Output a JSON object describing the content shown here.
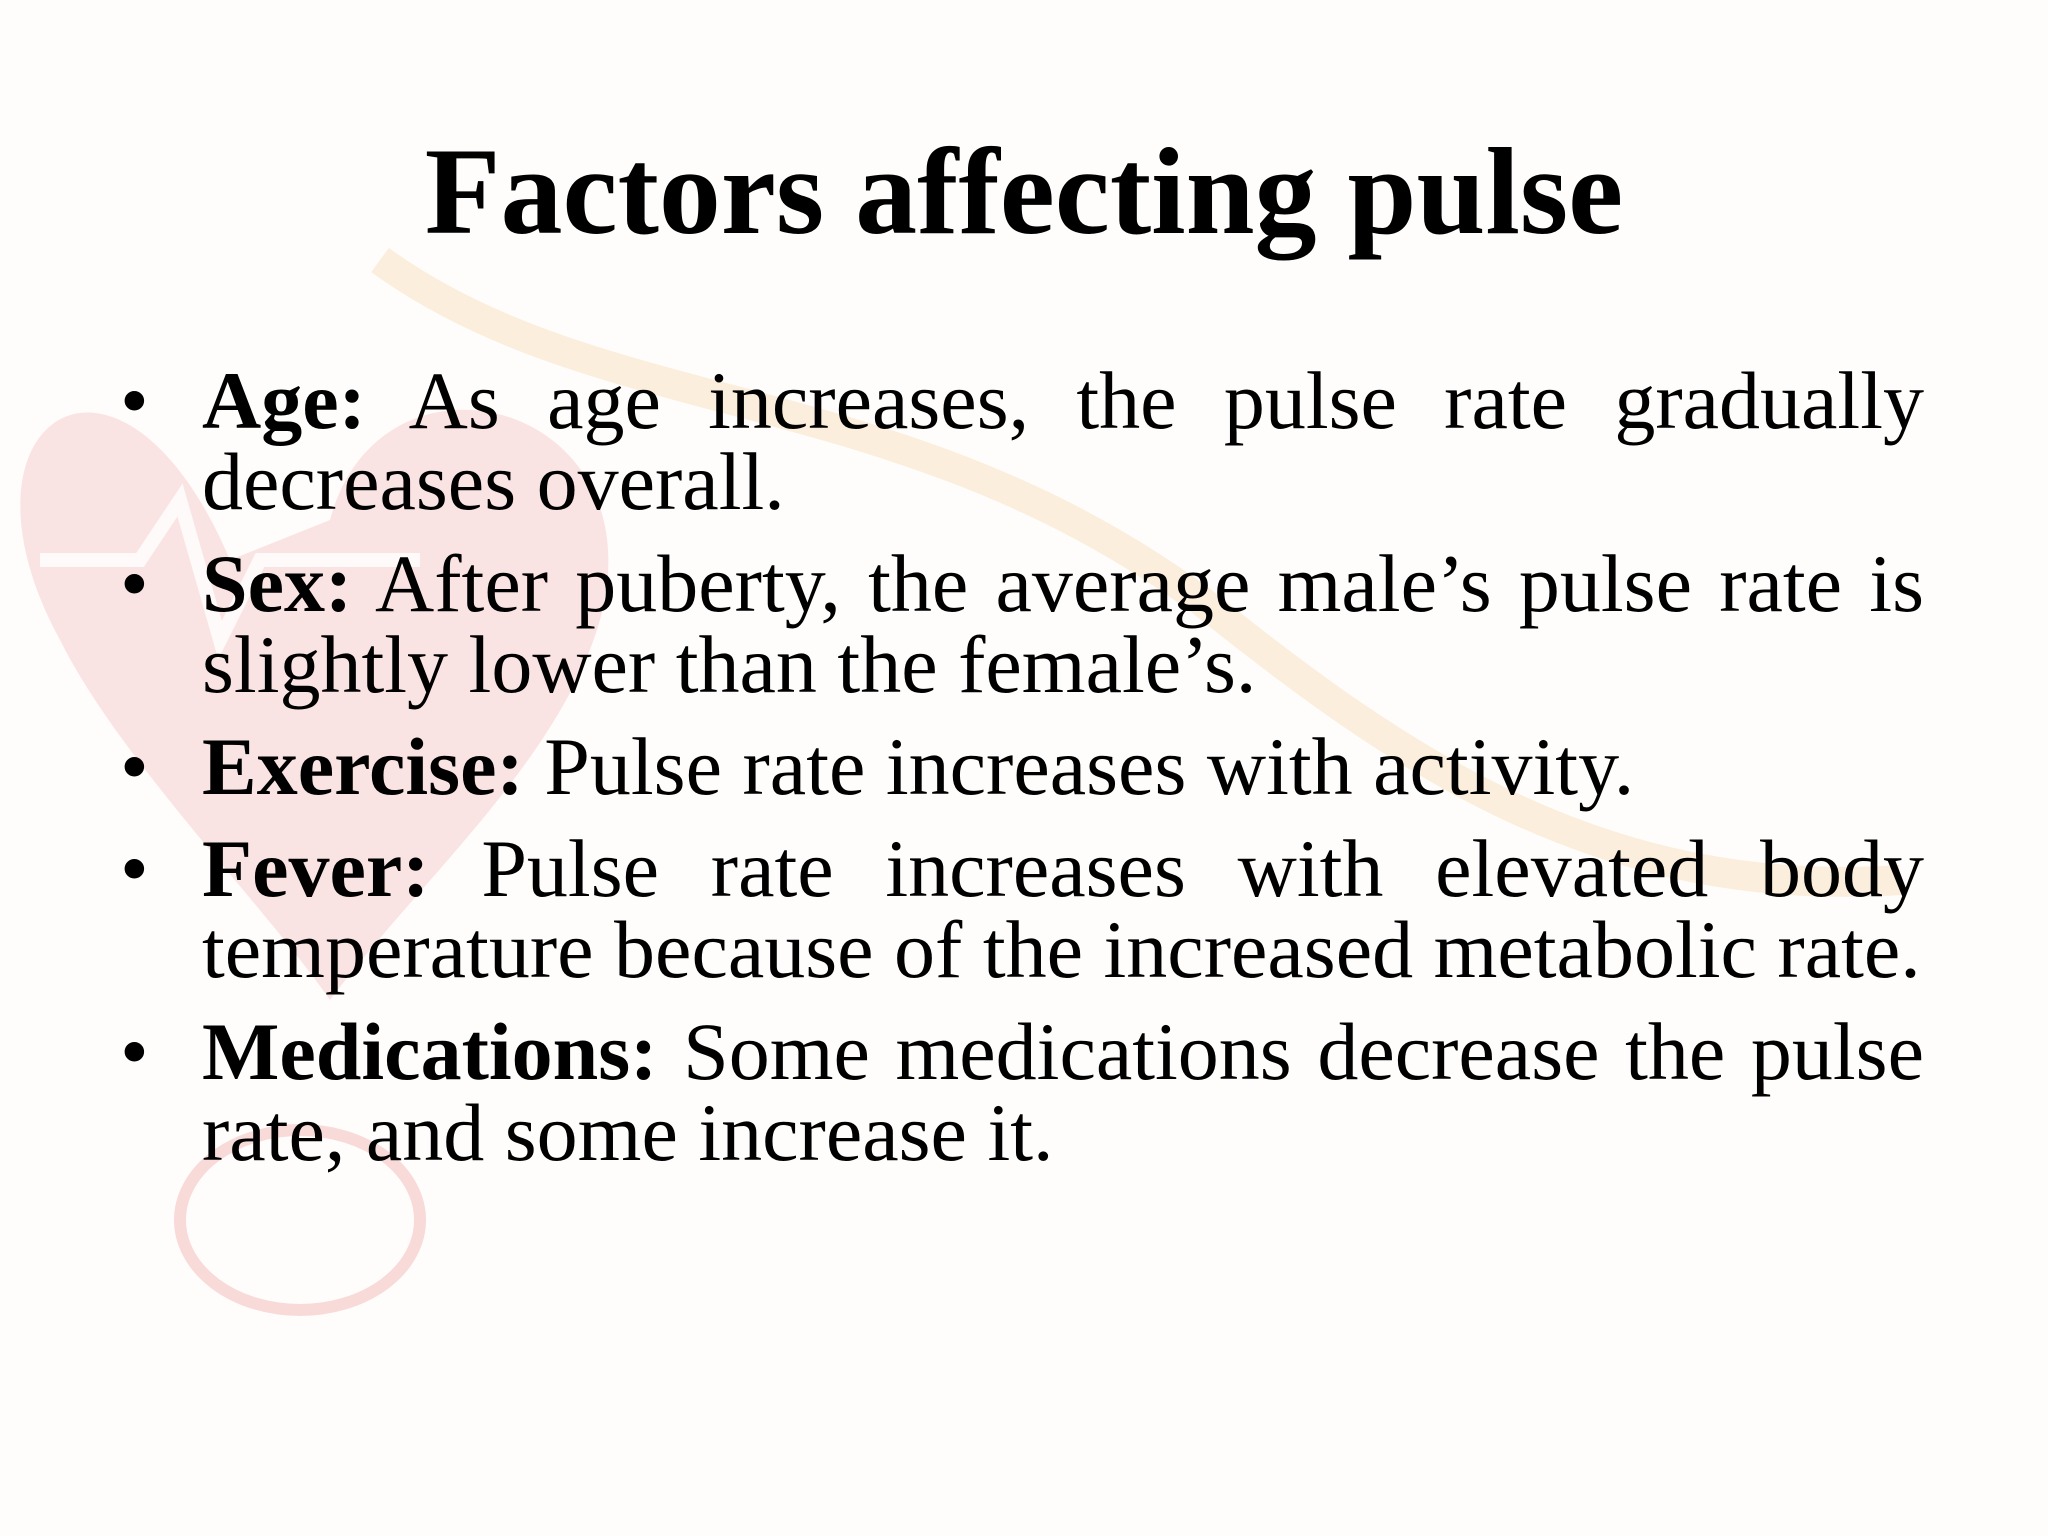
{
  "title": "Factors affecting pulse",
  "items": [
    {
      "label": "Age:",
      "text": "As age increases, the pulse rate gradually decreases overall."
    },
    {
      "label": "Sex:",
      "text": "After puberty, the average male’s pulse rate is slightly lower than the female’s."
    },
    {
      "label": "Exercise:",
      "text": "Pulse rate increases with activity."
    },
    {
      "label": "Fever:",
      "text": "Pulse rate increases with elevated body temperature because of the increased metabolic rate."
    },
    {
      "label": "Medications:",
      "text": "Some medications decrease the pulse rate, and some increase it."
    }
  ]
}
